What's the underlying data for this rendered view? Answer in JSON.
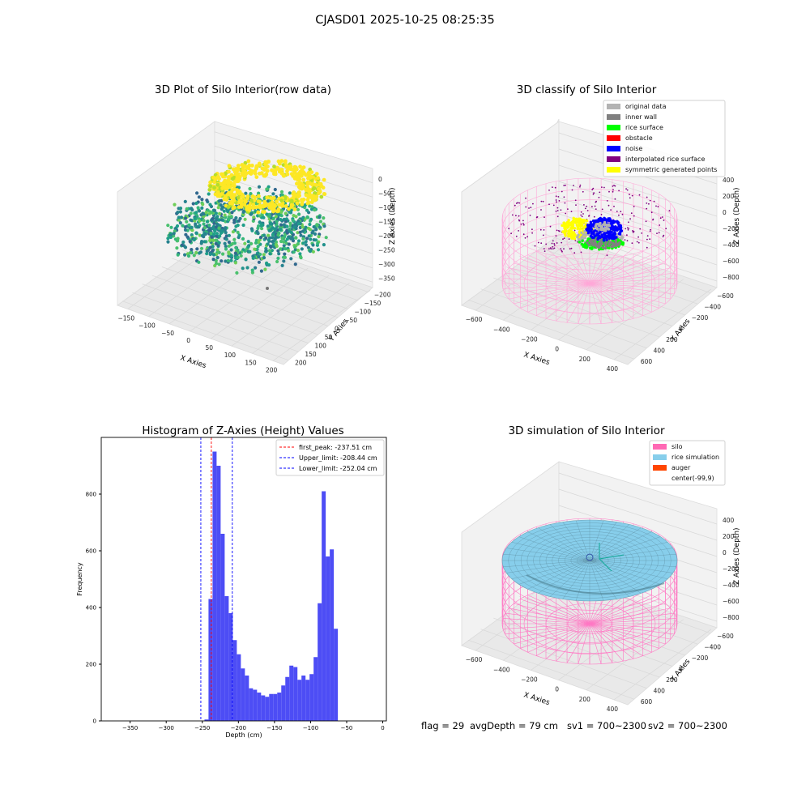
{
  "suptitle": "CJASD01 2025-10-25 08:25:35",
  "colors": {
    "hist_bar": "#4d4df5",
    "first_peak": "#ff0000",
    "limits": "#0000ff",
    "original": "#b3b3b3",
    "inner_wall": "#808080",
    "rice_surface": "#00ff00",
    "obstacle": "#ff0000",
    "noise": "#0000ff",
    "interpolated": "#800080",
    "symmetric": "#ffff00",
    "silo": "#ff69b4",
    "rice_sim": "#87ceeb",
    "auger": "#ff4500"
  },
  "panels": {
    "raw": {
      "title": "3D Plot of Silo Interior(row data)",
      "xlabel": "X Axies",
      "ylabel": "Y Axies",
      "zlabel": "Z Axies (Depth)",
      "x_ticks": [
        "−150",
        "−100",
        "−50",
        "0",
        "50",
        "100",
        "150",
        "200"
      ],
      "y_ticks": [
        "−200",
        "−150",
        "−100",
        "−50",
        "0",
        "50",
        "100",
        "150",
        "200"
      ],
      "z_ticks": [
        "0",
        "−50",
        "−100",
        "−150",
        "−200",
        "−250",
        "−300",
        "−350"
      ]
    },
    "classify": {
      "title": "3D classify of Silo Interior",
      "xlabel": "X Axies",
      "ylabel": "Y Axies",
      "zlabel": "Z Axies (Depth)",
      "x_ticks": [
        "−600",
        "−400",
        "−200",
        "0",
        "200",
        "400"
      ],
      "y_ticks": [
        "−600",
        "−400",
        "−200",
        "0",
        "200",
        "400",
        "600"
      ],
      "z_ticks": [
        "400",
        "200",
        "0",
        "−200",
        "−400",
        "−600",
        "−800"
      ],
      "legend": [
        "original data",
        "inner wall",
        "rice surface",
        "obstacle",
        "noise",
        "interpolated rice surface",
        "symmetric generated points"
      ]
    },
    "simulation": {
      "title": "3D simulation of Silo Interior",
      "xlabel": "X Axies",
      "ylabel": "Y Axies",
      "zlabel": "Z Axies (Depth)",
      "x_ticks": [
        "−600",
        "−400",
        "−200",
        "0",
        "200",
        "400"
      ],
      "y_ticks": [
        "−600",
        "−400",
        "−200",
        "0",
        "200",
        "400",
        "600"
      ],
      "z_ticks": [
        "400",
        "200",
        "0",
        "−200",
        "−400",
        "−600",
        "−800"
      ],
      "legend": [
        "silo",
        "rice simulation",
        "auger",
        "center(-99,9)"
      ]
    }
  },
  "footer": {
    "flag": "flag = 29",
    "avg": "avgDepth = 79 cm",
    "sv1": "sv1 = 700~2300",
    "sv2": "sv2 = 700~2300"
  },
  "chart_data": {
    "type": "bar",
    "title": "Histogram of Z-Axies (Height) Values",
    "xlabel": "Depth (cm)",
    "ylabel": "Frequency",
    "xlim": [
      -390,
      5
    ],
    "ylim": [
      0,
      1000
    ],
    "x_ticks": [
      -350,
      -300,
      -250,
      -200,
      -150,
      -100,
      -50,
      0
    ],
    "y_ticks": [
      0,
      200,
      400,
      600,
      800
    ],
    "bin_width": 5.6,
    "bins_start": -247.0,
    "values": [
      5,
      430,
      950,
      900,
      660,
      440,
      380,
      285,
      235,
      185,
      160,
      115,
      110,
      100,
      90,
      85,
      95,
      95,
      100,
      125,
      155,
      195,
      190,
      145,
      160,
      145,
      165,
      225,
      415,
      810,
      580,
      605,
      325
    ],
    "lines": [
      {
        "label": "first_peak: -237.51 cm",
        "x": -237.51,
        "style": "red"
      },
      {
        "label": "Upper_limit: -208.44 cm",
        "x": -208.44,
        "style": "blue"
      },
      {
        "label": "Lower_limit: -252.04 cm",
        "x": -252.04,
        "style": "blue"
      }
    ]
  }
}
